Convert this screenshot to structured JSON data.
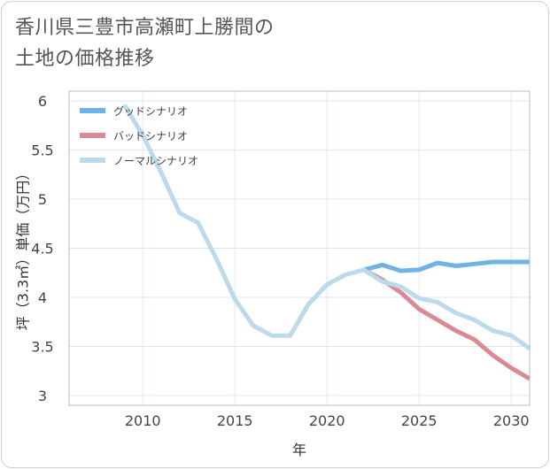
{
  "title_lines": [
    "香川県三豊市高瀬町上勝間の",
    "土地の価格推移"
  ],
  "chart_data": {
    "type": "line",
    "title": "香川県三豊市高瀬町上勝間の土地の価格推移",
    "xlabel": "年",
    "ylabel": "坪（3.3㎡）単価（万円）",
    "xlim": [
      2006,
      2031
    ],
    "ylim": [
      2.9,
      6.1
    ],
    "xticks": [
      2010,
      2015,
      2020,
      2025,
      2030
    ],
    "yticks": [
      3,
      3.5,
      4,
      4.5,
      5,
      5.5,
      6
    ],
    "grid": true,
    "legend_position": "top-left",
    "series": [
      {
        "name": "グッドシナリオ",
        "color": "#6fb3e6",
        "x": [
          2022,
          2023,
          2024,
          2025,
          2026,
          2027,
          2028,
          2029,
          2030,
          2031
        ],
        "y": [
          4.28,
          4.33,
          4.27,
          4.28,
          4.35,
          4.32,
          4.34,
          4.36,
          4.36,
          4.36
        ]
      },
      {
        "name": "バッドシナリオ",
        "color": "#d98a92",
        "x": [
          2022,
          2023,
          2024,
          2025,
          2026,
          2027,
          2028,
          2029,
          2030,
          2031
        ],
        "y": [
          4.28,
          4.18,
          4.05,
          3.88,
          3.77,
          3.66,
          3.57,
          3.41,
          3.28,
          3.17
        ]
      },
      {
        "name": "ノーマルシナリオ",
        "color": "#bcdaea",
        "x": [
          2009,
          2010,
          2011,
          2012,
          2013,
          2014,
          2015,
          2016,
          2017,
          2018,
          2019,
          2020,
          2021,
          2022,
          2023,
          2024,
          2025,
          2026,
          2027,
          2028,
          2029,
          2030,
          2031
        ],
        "y": [
          5.96,
          5.65,
          5.27,
          4.86,
          4.76,
          4.39,
          3.98,
          3.71,
          3.61,
          3.61,
          3.93,
          4.13,
          4.23,
          4.28,
          4.16,
          4.11,
          3.99,
          3.95,
          3.84,
          3.77,
          3.66,
          3.61,
          3.48
        ]
      }
    ]
  }
}
